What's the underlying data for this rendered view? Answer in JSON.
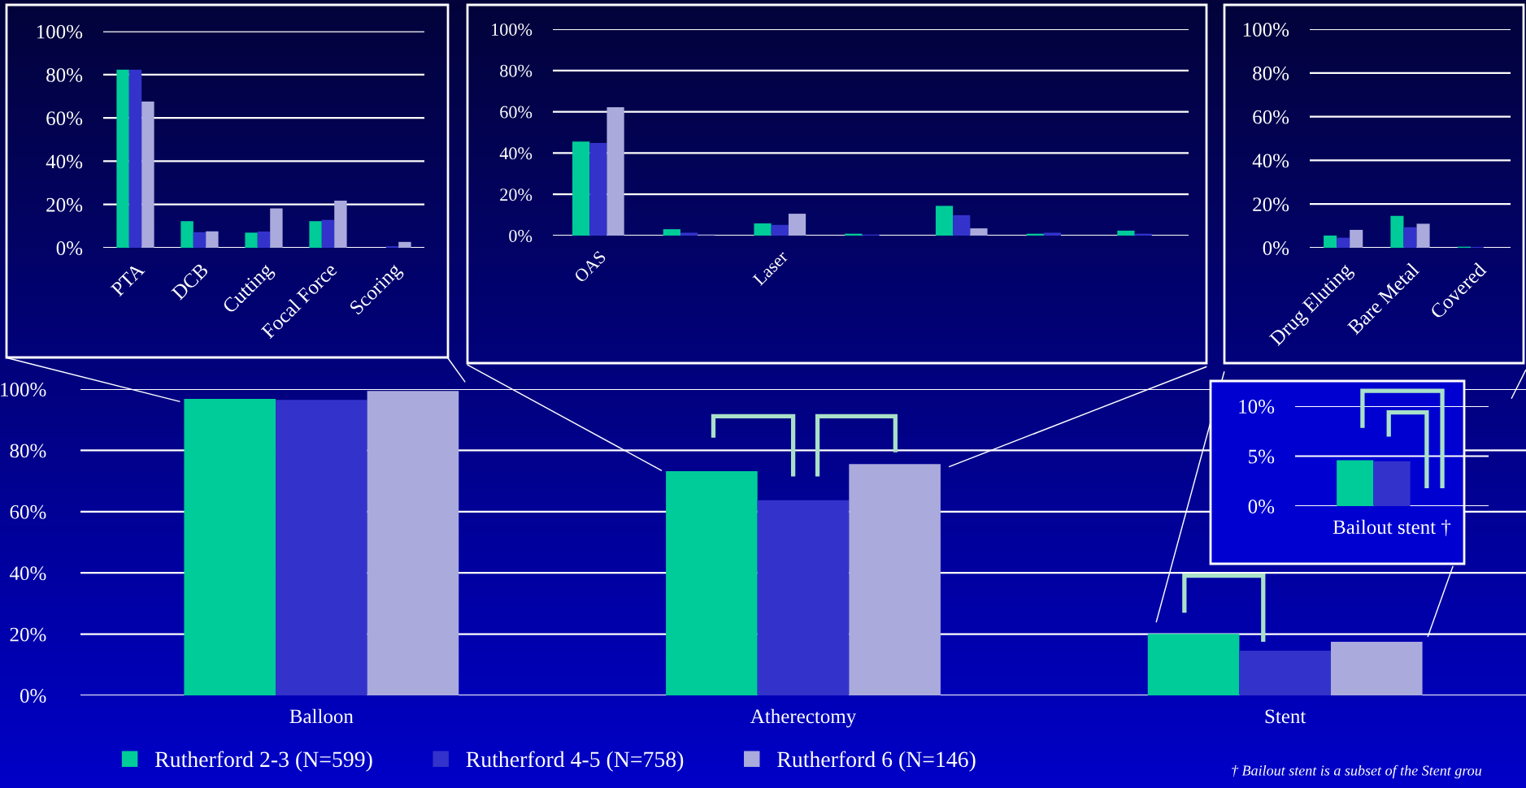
{
  "chart_data": [
    {
      "type": "bar",
      "categories": [
        "Balloon",
        "Atherectomy",
        "Stent"
      ],
      "series": [
        {
          "name": "Rutherford 2-3 (N=599)",
          "color": "#00cc99",
          "values": [
            96.8,
            73.2,
            20.1
          ]
        },
        {
          "name": "Rutherford 4-5 (N=758)",
          "color": "#3333cc",
          "values": [
            96.5,
            63.7,
            14.6
          ]
        },
        {
          "name": "Rutherford 6 (N=146)",
          "color": "#aaaadd",
          "values": [
            99.4,
            75.5,
            17.5
          ]
        }
      ],
      "ylim": [
        0,
        100
      ],
      "yticks": [
        {
          "value": 0,
          "label": "0%"
        },
        {
          "value": 20,
          "label": "20%"
        },
        {
          "value": 40,
          "label": "40%"
        },
        {
          "value": 60,
          "label": "60%"
        },
        {
          "value": 80,
          "label": "80%"
        },
        {
          "value": 100,
          "label": "100%"
        }
      ],
      "grid": "y",
      "legend": "bottom",
      "annotations": [
        "† Bailout stent is a subset of the Stent grou"
      ]
    },
    {
      "type": "bar",
      "categories": [
        "PTA",
        "DCB",
        "Cutting",
        "Focal Force",
        "Scoring"
      ],
      "series": [
        {
          "color": "#00cc99",
          "values": [
            82.3,
            12.3,
            7.0,
            12.3,
            null
          ]
        },
        {
          "color": "#3333cc",
          "values": [
            82.3,
            7.2,
            7.5,
            12.9,
            0.7
          ]
        },
        {
          "color": "#aaaadd",
          "values": [
            67.6,
            7.6,
            18.2,
            21.8,
            2.7
          ]
        }
      ],
      "ylim": [
        0,
        100
      ],
      "yticks": [
        {
          "value": 0,
          "label": "0%"
        },
        {
          "value": 20,
          "label": "20%"
        },
        {
          "value": 40,
          "label": "40%"
        },
        {
          "value": 60,
          "label": "60%"
        },
        {
          "value": 80,
          "label": "80%"
        },
        {
          "value": 100,
          "label": "100%"
        }
      ],
      "grid": "y"
    },
    {
      "type": "bar",
      "categories": [
        "OAS",
        null,
        "Laser",
        null,
        null,
        null,
        null
      ],
      "series": [
        {
          "color": "#00cc99",
          "values": [
            45.6,
            3.1,
            5.9,
            0.9,
            14.4,
            0.9,
            2.4
          ]
        },
        {
          "color": "#3333cc",
          "values": [
            44.9,
            1.4,
            5.2,
            0.5,
            9.9,
            1.4,
            0.9
          ]
        },
        {
          "color": "#aaaadd",
          "values": [
            62.2,
            0.5,
            10.6,
            0,
            3.5,
            0,
            0
          ]
        }
      ],
      "ylim": [
        0,
        100
      ],
      "yticks": [
        {
          "value": 0,
          "label": "0%"
        },
        {
          "value": 20,
          "label": "20%"
        },
        {
          "value": 40,
          "label": "40%"
        },
        {
          "value": 60,
          "label": "60%"
        },
        {
          "value": 80,
          "label": "80%"
        },
        {
          "value": 100,
          "label": "100%"
        }
      ],
      "grid": "y"
    },
    {
      "type": "bar",
      "categories": [
        "Drug Eluting",
        "Bare Metal",
        "Covered"
      ],
      "series": [
        {
          "color": "#00cc99",
          "values": [
            5.6,
            14.6,
            0.5
          ]
        },
        {
          "color": "#3333cc",
          "values": [
            4.6,
            9.4,
            0.4
          ]
        },
        {
          "color": "#aaaadd",
          "values": [
            8.2,
            11.0,
            0
          ]
        }
      ],
      "ylim": [
        0,
        100
      ],
      "yticks": [
        {
          "value": 0,
          "label": "0%"
        },
        {
          "value": 20,
          "label": "20%"
        },
        {
          "value": 40,
          "label": "40%"
        },
        {
          "value": 60,
          "label": "60%"
        },
        {
          "value": 80,
          "label": "80%"
        },
        {
          "value": 100,
          "label": "100%"
        }
      ],
      "grid": "y"
    },
    {
      "type": "bar",
      "categories": [
        "Bailout stent †"
      ],
      "series": [
        {
          "color": "#00cc99",
          "values": [
            4.6
          ]
        },
        {
          "color": "#3333cc",
          "values": [
            4.5
          ]
        },
        {
          "color": "#aaaadd",
          "values": [
            null
          ]
        }
      ],
      "ylim": [
        0,
        10
      ],
      "yticks": [
        {
          "value": 0,
          "label": "0%"
        },
        {
          "value": 5,
          "label": "5%"
        },
        {
          "value": 10,
          "label": "10%"
        }
      ],
      "grid": "y"
    }
  ]
}
